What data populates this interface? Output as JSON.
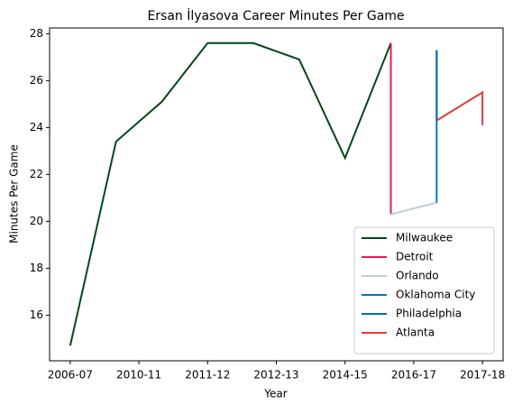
{
  "chart_data": {
    "type": "line",
    "title": "Ersan İlyasova Career Minutes Per Game",
    "x_label": "Year",
    "y_label": "Minutes Per Game",
    "xlim": [
      -0.45,
      9.45
    ],
    "xticks": [
      {
        "value": 0,
        "label": "2006-07"
      },
      {
        "value": 1.5,
        "label": "2010-11"
      },
      {
        "value": 3,
        "label": "2011-12"
      },
      {
        "value": 4.5,
        "label": "2012-13"
      },
      {
        "value": 6,
        "label": "2014-15"
      },
      {
        "value": 7.5,
        "label": "2016-17"
      },
      {
        "value": 9,
        "label": "2017-18"
      }
    ],
    "ylim": [
      14.055,
      28.245
    ],
    "yticks": [
      16,
      18,
      20,
      22,
      24,
      26,
      28
    ],
    "legend": "lower right",
    "series": [
      {
        "name": "Milwaukee",
        "color": "#00471b",
        "x": [
          0,
          1,
          2,
          3,
          4,
          5,
          6,
          7
        ],
        "values": [
          14.7,
          23.4,
          25.1,
          27.6,
          27.6,
          26.9,
          22.7,
          27.6
        ]
      },
      {
        "name": "Detroit",
        "color": "#e0204f",
        "x": [
          7,
          7
        ],
        "values": [
          27.6,
          20.3
        ]
      },
      {
        "name": "Orlando",
        "color": "#c4ced4",
        "x": [
          7,
          8
        ],
        "values": [
          20.3,
          20.8
        ]
      },
      {
        "name": "Oklahoma City",
        "color": "#007ac1",
        "x": [
          8,
          8
        ],
        "values": [
          20.8,
          27.3
        ]
      },
      {
        "name": "Philadelphia",
        "color": "#006bb6",
        "x": [
          8,
          8
        ],
        "values": [
          27.3,
          24.3
        ]
      },
      {
        "name": "Atlanta",
        "color": "#e03a3e",
        "x": [
          8,
          9,
          9
        ],
        "values": [
          24.3,
          25.5,
          24.1
        ]
      }
    ]
  }
}
